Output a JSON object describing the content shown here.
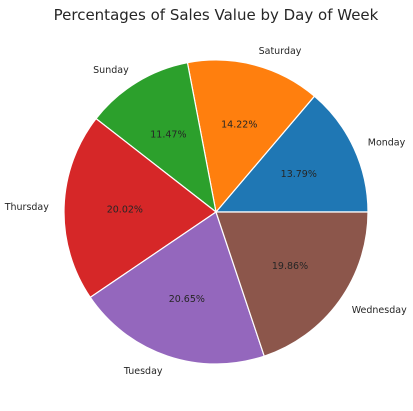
{
  "chart_data": {
    "type": "pie",
    "title": "Percentages of Sales Value by Day of Week",
    "categories": [
      "Monday",
      "Saturday",
      "Sunday",
      "Thursday",
      "Tuesday",
      "Wednesday"
    ],
    "values": [
      13.79,
      14.22,
      11.47,
      20.02,
      20.65,
      19.86
    ],
    "value_labels": [
      "13.79%",
      "14.22%",
      "11.47%",
      "20.02%",
      "20.65%",
      "19.86%"
    ],
    "colors": [
      "#1f77b4",
      "#ff7f0e",
      "#2ca02c",
      "#d62728",
      "#9467bd",
      "#8c564b"
    ],
    "start_angle_deg": 0,
    "direction": "counterclockwise",
    "legend": "none"
  }
}
